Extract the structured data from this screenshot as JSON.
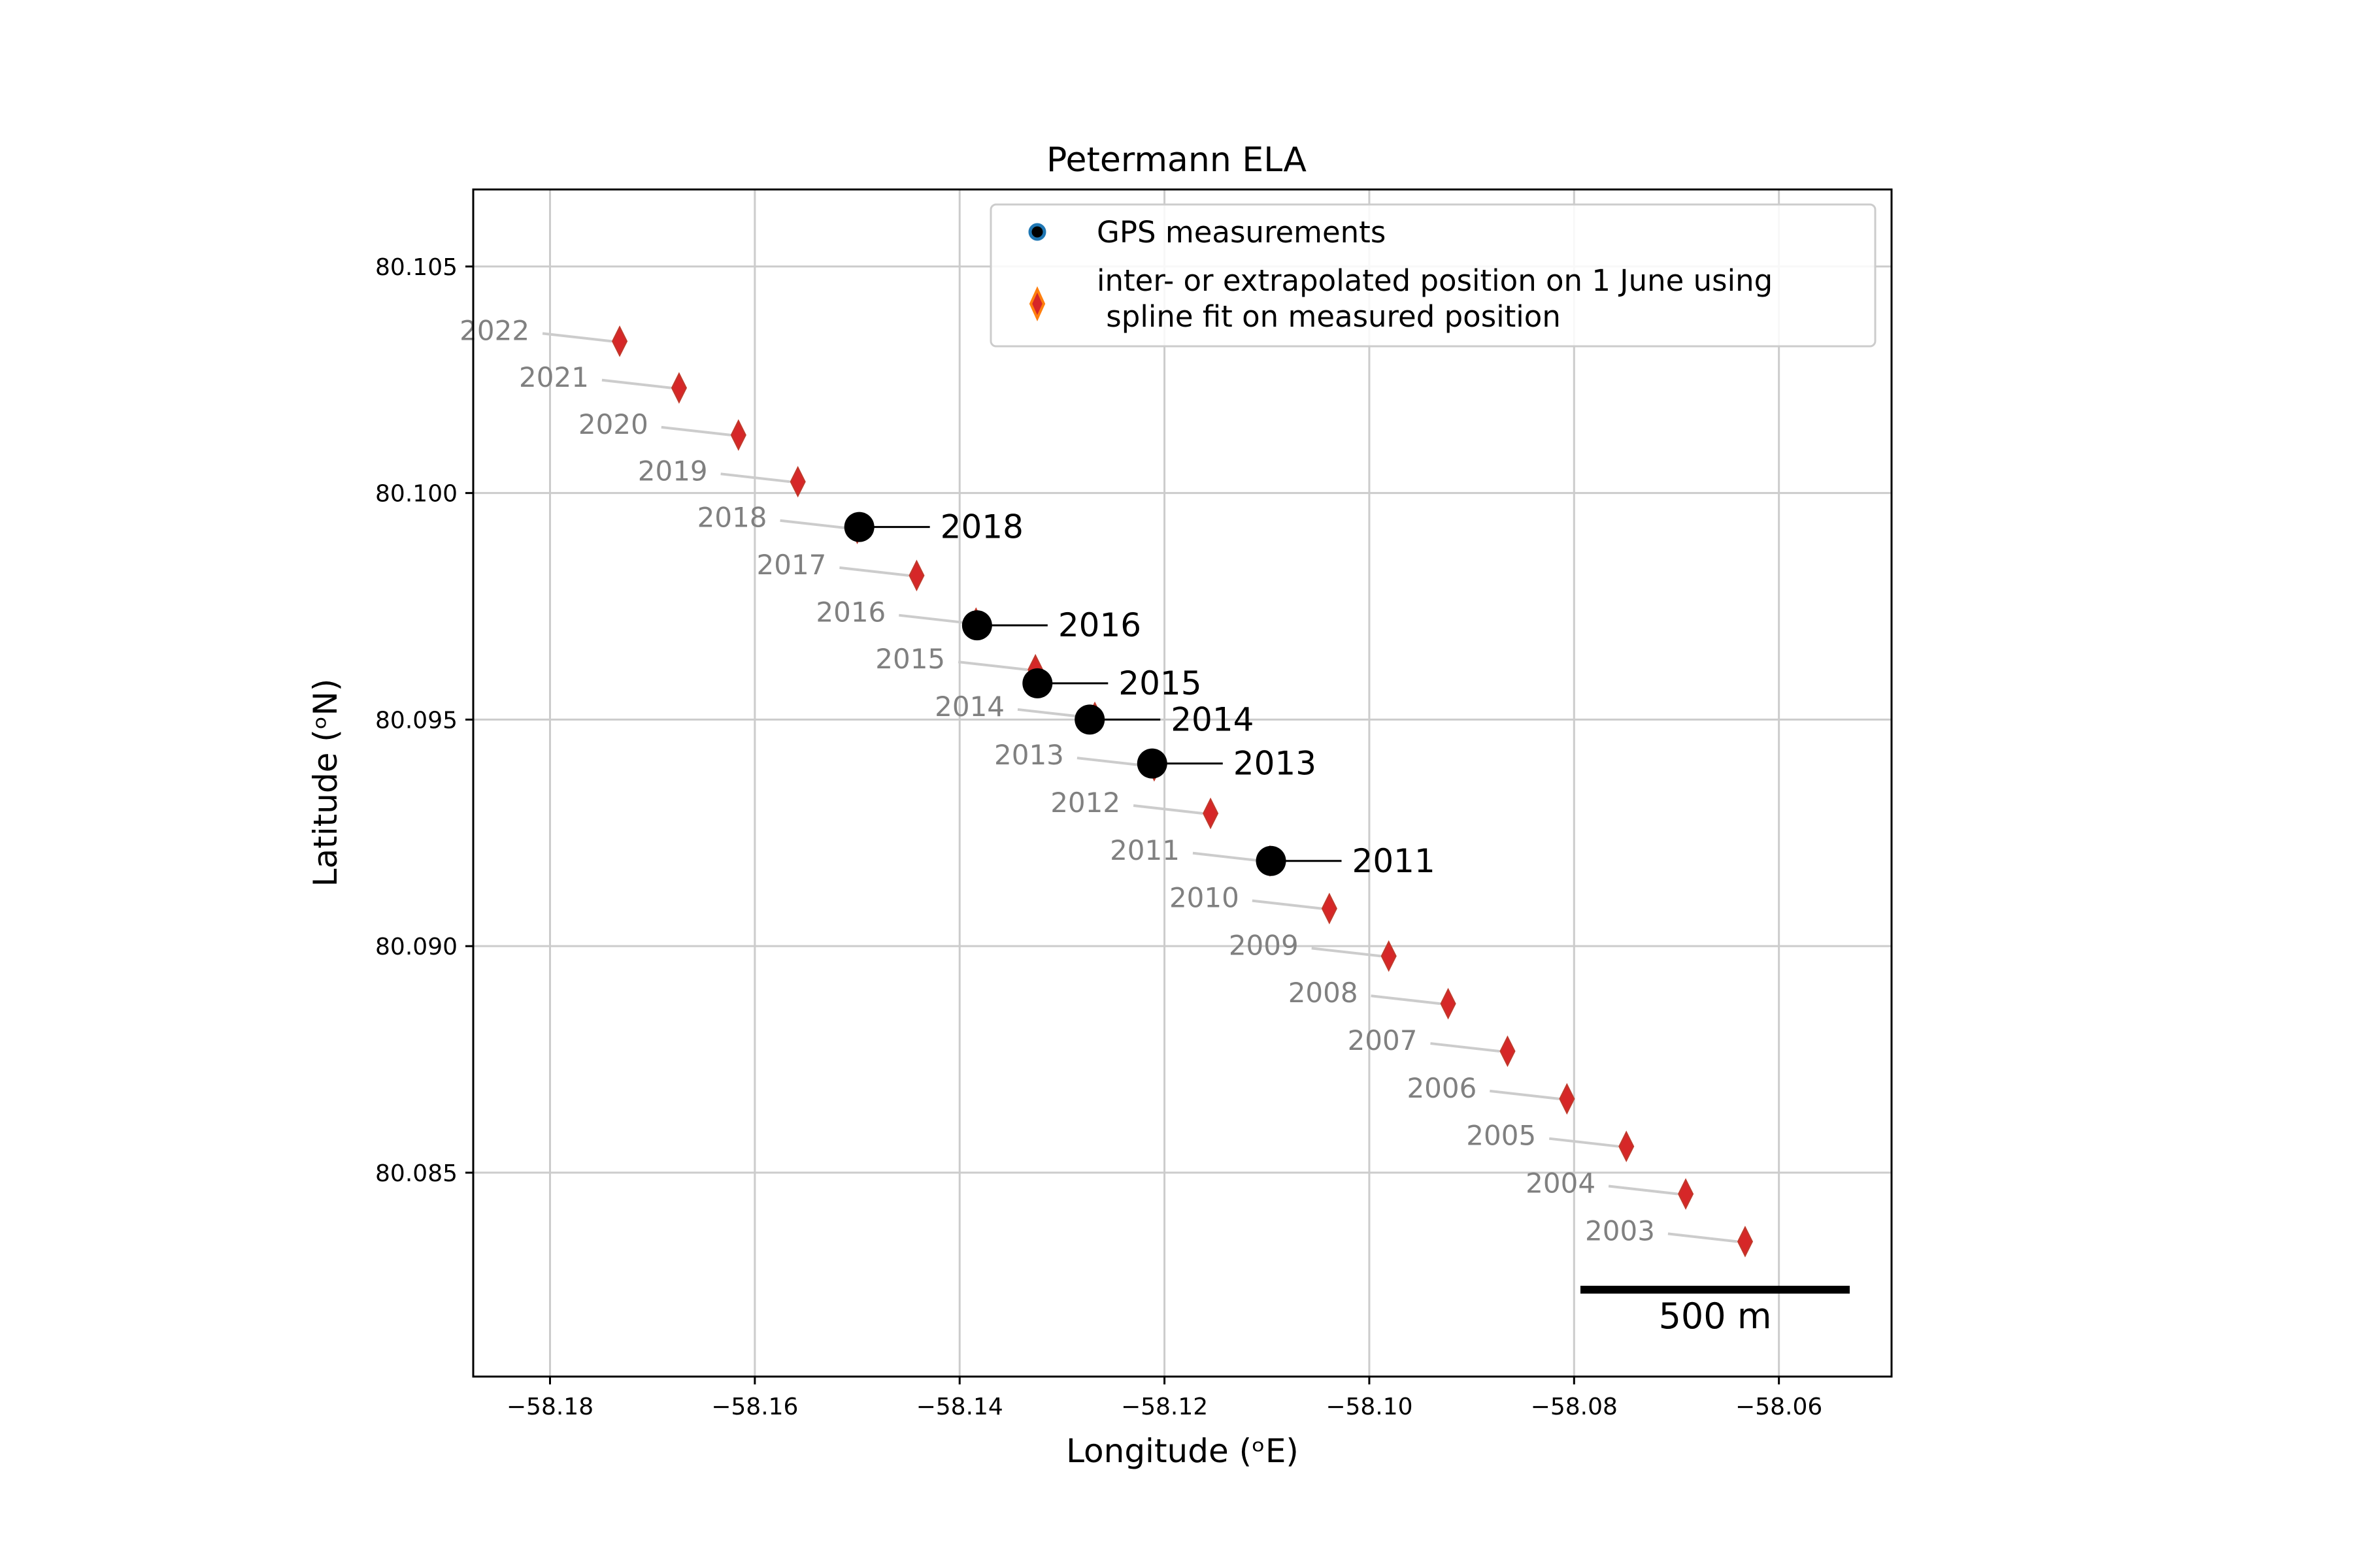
{
  "chart_data": {
    "type": "scatter",
    "title": "Petermann ELA",
    "xlabel": "Longitude (ᵒE)",
    "ylabel": "Latitude (ᵒN)",
    "xlim": [
      -58.1875,
      -58.049
    ],
    "ylim": [
      80.0805,
      80.1067
    ],
    "x_ticks": [
      -58.18,
      -58.16,
      -58.14,
      -58.12,
      -58.1,
      -58.08,
      -58.06
    ],
    "x_tick_labels": [
      "−58.18",
      "−58.16",
      "−58.14",
      "−58.12",
      "−58.10",
      "−58.08",
      "−58.06"
    ],
    "y_ticks": [
      80.085,
      80.09,
      80.095,
      80.1,
      80.105
    ],
    "y_tick_labels": [
      "80.085",
      "80.090",
      "80.095",
      "80.100",
      "80.105"
    ],
    "grid": true,
    "legend": {
      "location": "top-right",
      "entries": [
        {
          "label": "GPS measurements",
          "marker": "circle",
          "color": "#000000",
          "edge": "#1f77b4"
        },
        {
          "label_lines": [
            "inter- or extrapolated position on 1 June using",
            " spline fit on measured position"
          ],
          "marker": "diamond",
          "color": "#d62728",
          "edge": "#ff7f0e"
        }
      ]
    },
    "series": [
      {
        "name": "inter- or extrapolated position on 1 June using spline fit on measured position",
        "marker": "diamond",
        "color": "#d62728",
        "label_color": "#808080",
        "points": [
          {
            "year": "2022",
            "lon": -58.1732,
            "lat": 80.10335
          },
          {
            "year": "2021",
            "lon": -58.1674,
            "lat": 80.10232
          },
          {
            "year": "2020",
            "lon": -58.1616,
            "lat": 80.10128
          },
          {
            "year": "2019",
            "lon": -58.1558,
            "lat": 80.10025
          },
          {
            "year": "2018",
            "lon": -58.15,
            "lat": 80.09922
          },
          {
            "year": "2017",
            "lon": -58.1442,
            "lat": 80.09818
          },
          {
            "year": "2016",
            "lon": -58.1384,
            "lat": 80.09713
          },
          {
            "year": "2015",
            "lon": -58.1326,
            "lat": 80.0961
          },
          {
            "year": "2014",
            "lon": -58.1268,
            "lat": 80.09505
          },
          {
            "year": "2013",
            "lon": -58.121,
            "lat": 80.09398
          },
          {
            "year": "2012",
            "lon": -58.1155,
            "lat": 80.09293
          },
          {
            "year": "2011",
            "lon": -58.1097,
            "lat": 80.09188
          },
          {
            "year": "2010",
            "lon": -58.1039,
            "lat": 80.09083
          },
          {
            "year": "2009",
            "lon": -58.0981,
            "lat": 80.08978
          },
          {
            "year": "2008",
            "lon": -58.0923,
            "lat": 80.08873
          },
          {
            "year": "2007",
            "lon": -58.0865,
            "lat": 80.08768
          },
          {
            "year": "2006",
            "lon": -58.0807,
            "lat": 80.08663
          },
          {
            "year": "2005",
            "lon": -58.0749,
            "lat": 80.08558
          },
          {
            "year": "2004",
            "lon": -58.0691,
            "lat": 80.08453
          },
          {
            "year": "2003",
            "lon": -58.0633,
            "lat": 80.08348
          }
        ]
      },
      {
        "name": "GPS measurements",
        "marker": "circle",
        "color": "#000000",
        "label_color": "#000000",
        "points": [
          {
            "year": "2018",
            "lon": -58.1498,
            "lat": 80.09925
          },
          {
            "year": "2016",
            "lon": -58.1383,
            "lat": 80.09708
          },
          {
            "year": "2015",
            "lon": -58.1324,
            "lat": 80.0958
          },
          {
            "year": "2014",
            "lon": -58.1273,
            "lat": 80.095
          },
          {
            "year": "2013",
            "lon": -58.1212,
            "lat": 80.09403
          },
          {
            "year": "2011",
            "lon": -58.1096,
            "lat": 80.09188
          }
        ]
      }
    ],
    "scale_bar": {
      "label": "500 m",
      "location": "bottom-right"
    }
  }
}
